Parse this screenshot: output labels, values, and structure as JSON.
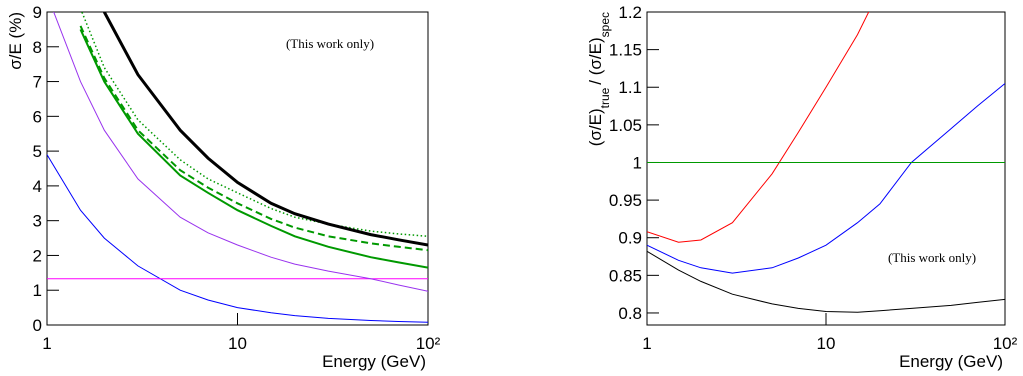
{
  "chart_data": [
    {
      "type": "line",
      "x_label": "Energy (GeV)",
      "y_label": "σ/E (%)",
      "annotation": "(This work only)",
      "log_x": true,
      "xlim": [
        1,
        100
      ],
      "xticks": [
        1,
        10,
        {
          "value": 100,
          "label": "10²"
        }
      ],
      "ylim": [
        0,
        9
      ],
      "yticks": [
        0,
        1,
        2,
        3,
        4,
        5,
        6,
        7,
        8,
        9
      ],
      "x": [
        1,
        1.5,
        2,
        3,
        5,
        7,
        10,
        15,
        20,
        30,
        50,
        70,
        100
      ],
      "series": [
        {
          "color": "#0000ff",
          "style": "solid",
          "width": 1,
          "values": [
            4.9,
            3.3,
            2.5,
            1.7,
            1.0,
            0.72,
            0.5,
            0.35,
            0.27,
            0.19,
            0.13,
            0.1,
            0.08
          ]
        },
        {
          "color": "#ff00ff",
          "style": "solid",
          "width": 1,
          "values": [
            1.33,
            1.33,
            1.33,
            1.33,
            1.33,
            1.33,
            1.33,
            1.33,
            1.33,
            1.33,
            1.33,
            1.33,
            1.33
          ]
        },
        {
          "color": "#9933ee",
          "style": "solid",
          "width": 1,
          "values": [
            9.5,
            7.0,
            5.6,
            4.2,
            3.1,
            2.65,
            2.3,
            1.95,
            1.75,
            1.55,
            1.33,
            1.15,
            0.97
          ]
        },
        {
          "color": "#009900",
          "style": "solid",
          "width": 2,
          "values": [
            null,
            8.5,
            7.0,
            5.5,
            4.3,
            3.8,
            3.3,
            2.85,
            2.55,
            2.25,
            1.95,
            1.8,
            1.65
          ]
        },
        {
          "color": "#009900",
          "style": "dashed",
          "width": 2,
          "values": [
            null,
            8.6,
            7.1,
            5.6,
            4.45,
            3.95,
            3.5,
            3.05,
            2.8,
            2.55,
            2.35,
            2.25,
            2.15
          ]
        },
        {
          "color": "#009900",
          "style": "dotted",
          "width": 1.5,
          "values": [
            null,
            9.1,
            7.4,
            5.9,
            4.75,
            4.2,
            3.8,
            3.35,
            3.1,
            2.9,
            2.7,
            2.62,
            2.55
          ]
        },
        {
          "color": "#000000",
          "style": "solid",
          "width": 3,
          "values": [
            null,
            null,
            9.0,
            7.2,
            5.6,
            4.8,
            4.1,
            3.5,
            3.2,
            2.9,
            2.6,
            2.45,
            2.3
          ]
        }
      ]
    },
    {
      "type": "line",
      "x_label": "Energy (GeV)",
      "y_label_parts": [
        "(σ/E)",
        "true",
        "/ (σ/E)",
        "spec"
      ],
      "annotation": "(This work only)",
      "log_x": true,
      "xlim": [
        1,
        100
      ],
      "xticks": [
        1,
        10,
        {
          "value": 100,
          "label": "10²"
        }
      ],
      "ylim": [
        0.784,
        1.2
      ],
      "yticks": [
        0.8,
        0.85,
        0.9,
        0.95,
        1,
        1.05,
        1.1,
        1.15,
        1.2
      ],
      "x": [
        1,
        1.5,
        2,
        3,
        5,
        7,
        10,
        15,
        20,
        30,
        50,
        70,
        100
      ],
      "series": [
        {
          "color": "#000000",
          "style": "solid",
          "width": 1,
          "values": [
            0.882,
            0.857,
            0.842,
            0.825,
            0.812,
            0.806,
            0.802,
            0.801,
            0.803,
            0.806,
            0.81,
            0.814,
            0.818
          ]
        },
        {
          "color": "#0000ff",
          "style": "solid",
          "width": 1,
          "values": [
            0.89,
            0.87,
            0.86,
            0.853,
            0.86,
            0.873,
            0.89,
            0.92,
            0.945,
            1.0,
            1.045,
            1.075,
            1.105
          ]
        },
        {
          "color": "#ff0000",
          "style": "solid",
          "width": 1,
          "values": [
            0.908,
            0.894,
            0.897,
            0.92,
            0.985,
            1.04,
            1.1,
            1.17,
            1.23,
            null,
            null,
            null,
            null
          ]
        },
        {
          "color": "#009900",
          "style": "solid",
          "width": 1,
          "values": [
            1,
            1,
            1,
            1,
            1,
            1,
            1,
            1,
            1,
            1,
            1,
            1,
            1
          ]
        }
      ]
    }
  ]
}
